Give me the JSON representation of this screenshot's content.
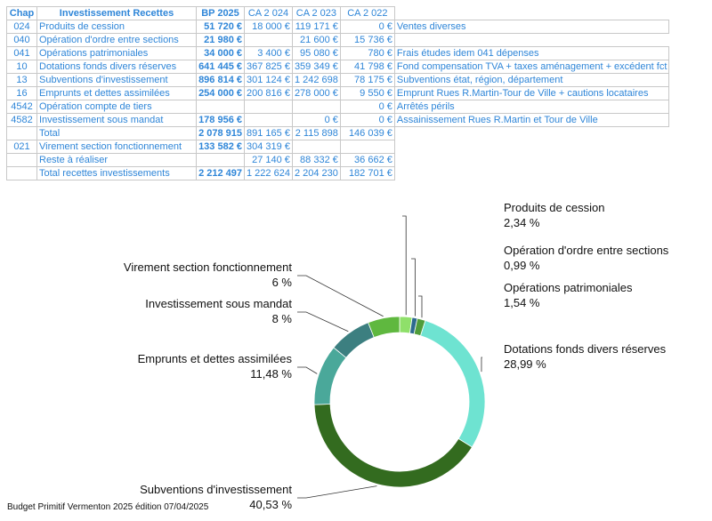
{
  "table": {
    "headers": [
      "Chap",
      "Investissement Recettes",
      "BP 2025",
      "CA 2 024",
      "CA 2 023",
      "CA 2 022",
      ""
    ],
    "rows": [
      {
        "chap": "024",
        "label": "Produits de cession",
        "bp": "51 720 €",
        "ca2024": "18 000 €",
        "ca2023": "119 171 €",
        "ca2022": "0 €",
        "note": "Ventes diverses"
      },
      {
        "chap": "040",
        "label": "Opération d'ordre entre sections",
        "bp": "21 980 €",
        "ca2024": "",
        "ca2023": "21 600 €",
        "ca2022": "15 736 €",
        "note": ""
      },
      {
        "chap": "041",
        "label": "Opérations patrimoniales",
        "bp": "34 000 €",
        "ca2024": "3 400 €",
        "ca2023": "95 080 €",
        "ca2022": "780 €",
        "note": "Frais études idem 041 dépenses"
      },
      {
        "chap": "10",
        "label": "Dotations fonds divers réserves",
        "bp": "641 445 €",
        "ca2024": "367 825 €",
        "ca2023": "359 349 €",
        "ca2022": "41 798 €",
        "note": "Fond compensation TVA + taxes aménagement + excédent fct"
      },
      {
        "chap": "13",
        "label": "Subventions d'investissement",
        "bp": "896 814 €",
        "ca2024": "301 124 €",
        "ca2023": "1 242 698",
        "ca2022": "78 175 €",
        "note": "Subventions état, région, département"
      },
      {
        "chap": "16",
        "label": "Emprunts et dettes assimilées",
        "bp": "254 000 €",
        "ca2024": "200 816 €",
        "ca2023": "278 000 €",
        "ca2022": "9 550 €",
        "note": "Emprunt Rues R.Martin-Tour de Ville + cautions locataires"
      },
      {
        "chap": "4542",
        "label": "Opération compte de tiers",
        "bp": "",
        "ca2024": "",
        "ca2023": "",
        "ca2022": "0 €",
        "note": "Arrêtés périls"
      },
      {
        "chap": "4582",
        "label": "Investissement sous mandat",
        "bp": "178 956 €",
        "ca2024": "",
        "ca2023": "0 €",
        "ca2022": "0 €",
        "note": "Assainissement Rues R.Martin et Tour de Ville"
      },
      {
        "chap": "",
        "label": "Total",
        "bp": "2 078 915",
        "ca2024": "891 165 €",
        "ca2023": "2 115 898",
        "ca2022": "146 039 €",
        "note": ""
      },
      {
        "chap": "021",
        "label": "Virement section fonctionnement",
        "bp": "133 582 €",
        "ca2024": "304 319 €",
        "ca2023": "",
        "ca2022": "",
        "note": ""
      },
      {
        "chap": "",
        "label": "Reste à réaliser",
        "bp": "",
        "ca2024": "27 140 €",
        "ca2023": "88 332 €",
        "ca2022": "36 662 €",
        "note": ""
      },
      {
        "chap": "",
        "label": "Total recettes investissements",
        "bp": "2 212 497",
        "ca2024": "1 222 624",
        "ca2023": "2 204 230",
        "ca2022": "182 701 €",
        "note": ""
      }
    ]
  },
  "chart_data": {
    "type": "pie",
    "donut": true,
    "legend": "none",
    "slices": [
      {
        "label": "Produits de cession",
        "value_label": "2,34 %",
        "value": 2.34,
        "color": "#8fe06a"
      },
      {
        "label": "Opération d'ordre entre sections",
        "value_label": "0,99 %",
        "value": 0.99,
        "color": "#2d6a8f"
      },
      {
        "label": "Opérations patrimoniales",
        "value_label": "1,54 %",
        "value": 1.54,
        "color": "#4f9c3a"
      },
      {
        "label": "Dotations fonds divers réserves",
        "value_label": "28,99 %",
        "value": 28.99,
        "color": "#6ee3d1"
      },
      {
        "label": "Subventions d'investissement",
        "value_label": "40,53 %",
        "value": 40.53,
        "color": "#336b1f"
      },
      {
        "label": "Emprunts et dettes assimilées",
        "value_label": "11,48 %",
        "value": 11.48,
        "color": "#4aa89a"
      },
      {
        "label": "Investissement sous mandat",
        "value_label": "8 %",
        "value": 8,
        "color": "#3c7f80"
      },
      {
        "label": "Virement section fonctionnement",
        "value_label": "6 %",
        "value": 6,
        "color": "#5fb83f"
      }
    ]
  },
  "footer": "Budget Primitif Vermenton 2025 édition 07/04/2025"
}
